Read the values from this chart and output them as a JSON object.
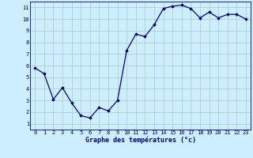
{
  "x": [
    0,
    1,
    2,
    3,
    4,
    5,
    6,
    7,
    8,
    9,
    10,
    11,
    12,
    13,
    14,
    15,
    16,
    17,
    18,
    19,
    20,
    21,
    22,
    23
  ],
  "y": [
    5.8,
    5.3,
    3.1,
    4.1,
    2.8,
    1.7,
    1.5,
    2.4,
    2.1,
    3.0,
    7.3,
    8.7,
    8.5,
    9.5,
    10.9,
    11.1,
    11.2,
    10.9,
    10.1,
    10.6,
    10.1,
    10.4,
    10.4,
    10.0
  ],
  "line_color": "#00008B",
  "marker_color": "#00008B",
  "bg_color": "#cceeff",
  "grid_color": "#aaccbb",
  "xlabel": "Graphe des températures (°c)",
  "xlabel_color": "#00008B",
  "ylim": [
    0.5,
    11.5
  ],
  "xlim": [
    -0.5,
    23.5
  ],
  "yticks": [
    1,
    2,
    3,
    4,
    5,
    6,
    7,
    8,
    9,
    10,
    11
  ],
  "xticks": [
    0,
    1,
    2,
    3,
    4,
    5,
    6,
    7,
    8,
    9,
    10,
    11,
    12,
    13,
    14,
    15,
    16,
    17,
    18,
    19,
    20,
    21,
    22,
    23
  ],
  "tick_color": "#00008B",
  "tick_fontsize": 5.0,
  "xlabel_fontsize": 6.0,
  "spine_color": "#00008B"
}
